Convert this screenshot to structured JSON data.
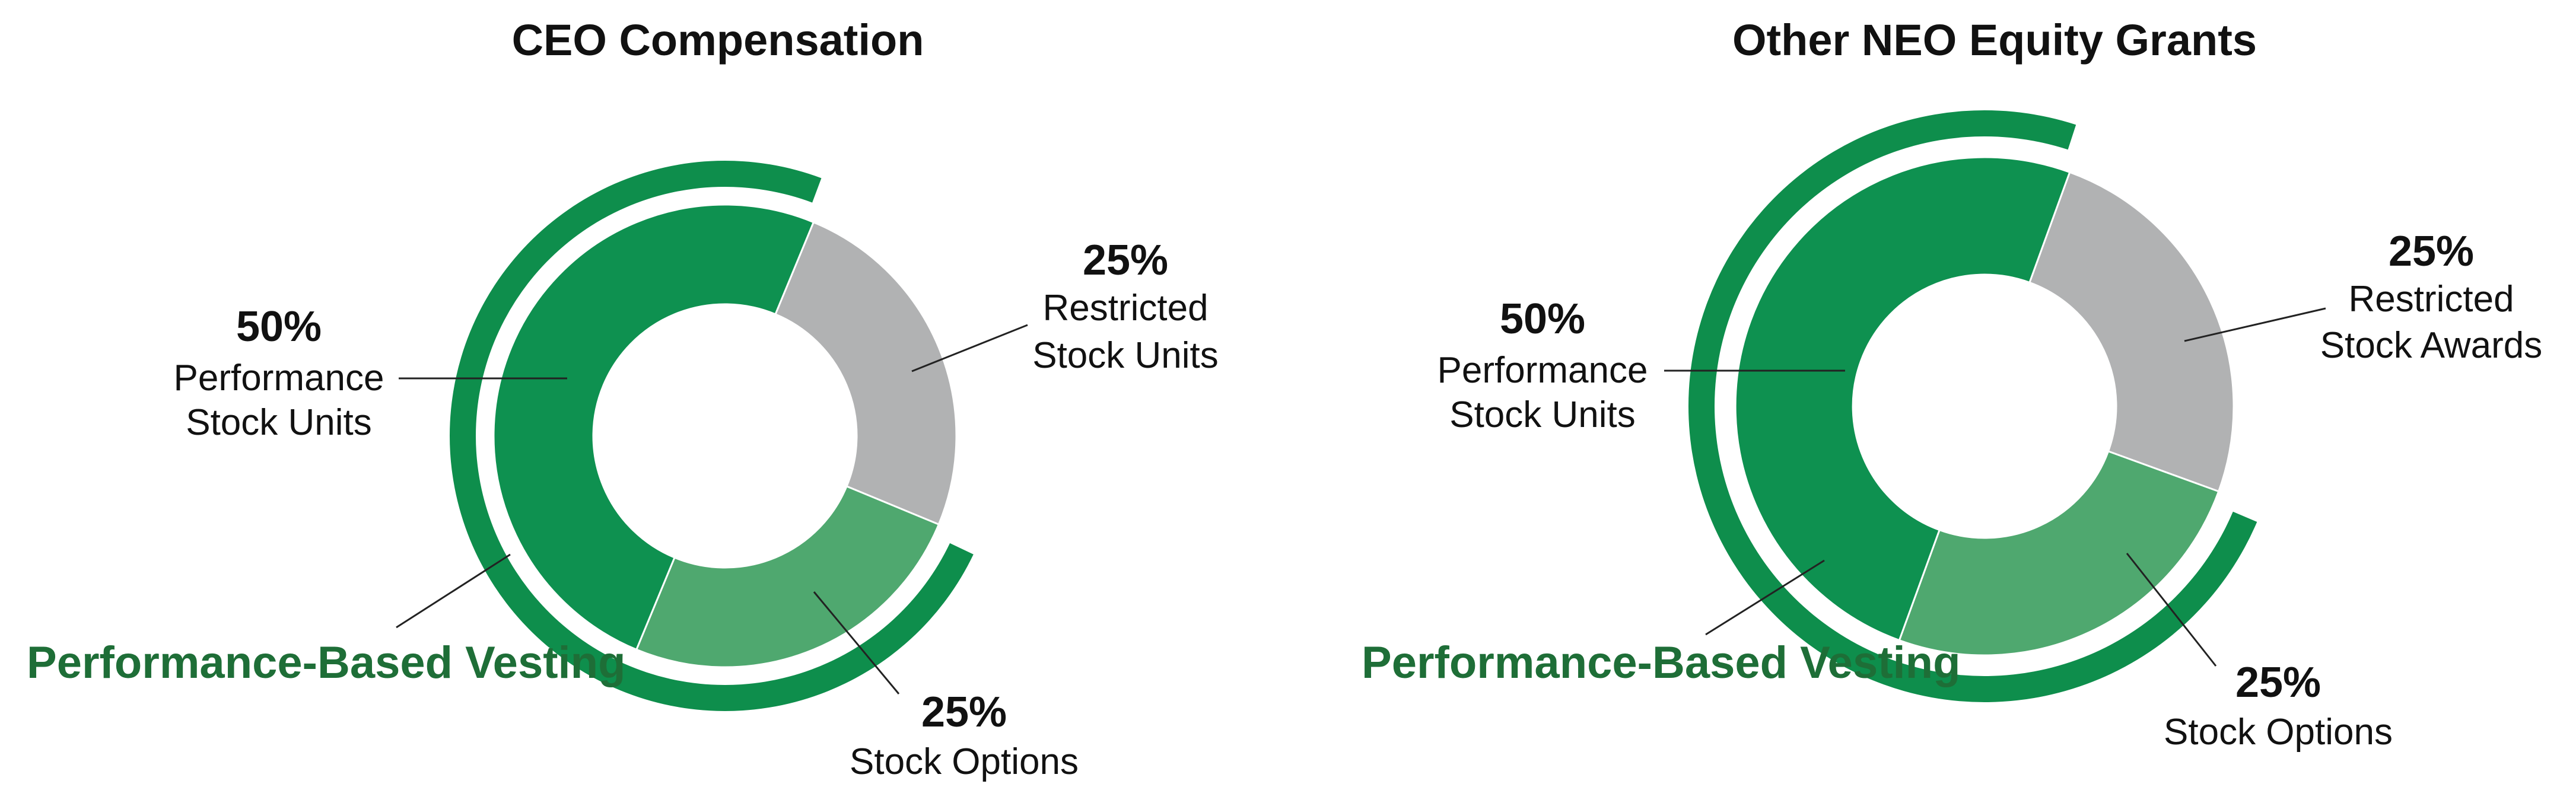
{
  "colors": {
    "performance": "#0e9150",
    "restricted": "#b1b2b3",
    "options": "#4fa86f",
    "arc": "#0e8e4c",
    "arc_label": "#1e6e37"
  },
  "chart_data": [
    {
      "type": "pie",
      "title": "CEO Compensation",
      "slices": [
        {
          "name": "Performance Stock Units",
          "pct_text": "50%",
          "line1": "Performance",
          "line2": "Stock Units",
          "value": 50
        },
        {
          "name": "Restricted Stock Units",
          "pct_text": "25%",
          "line1": "Restricted",
          "line2": "Stock Units",
          "value": 25
        },
        {
          "name": "Stock Options",
          "pct_text": "25%",
          "line1": "Stock Options",
          "line2": "",
          "value": 25
        }
      ],
      "arc_label": "Performance-Based Vesting"
    },
    {
      "type": "pie",
      "title": "Other NEO Equity Grants",
      "slices": [
        {
          "name": "Performance Stock Units",
          "pct_text": "50%",
          "line1": "Performance",
          "line2": "Stock Units",
          "value": 50
        },
        {
          "name": "Restricted Stock Awards",
          "pct_text": "25%",
          "line1": "Restricted",
          "line2": "Stock Awards",
          "value": 25
        },
        {
          "name": "Stock Options",
          "pct_text": "25%",
          "line1": "Stock Options",
          "line2": "",
          "value": 25
        }
      ],
      "arc_label": "Performance-Based Vesting"
    }
  ]
}
